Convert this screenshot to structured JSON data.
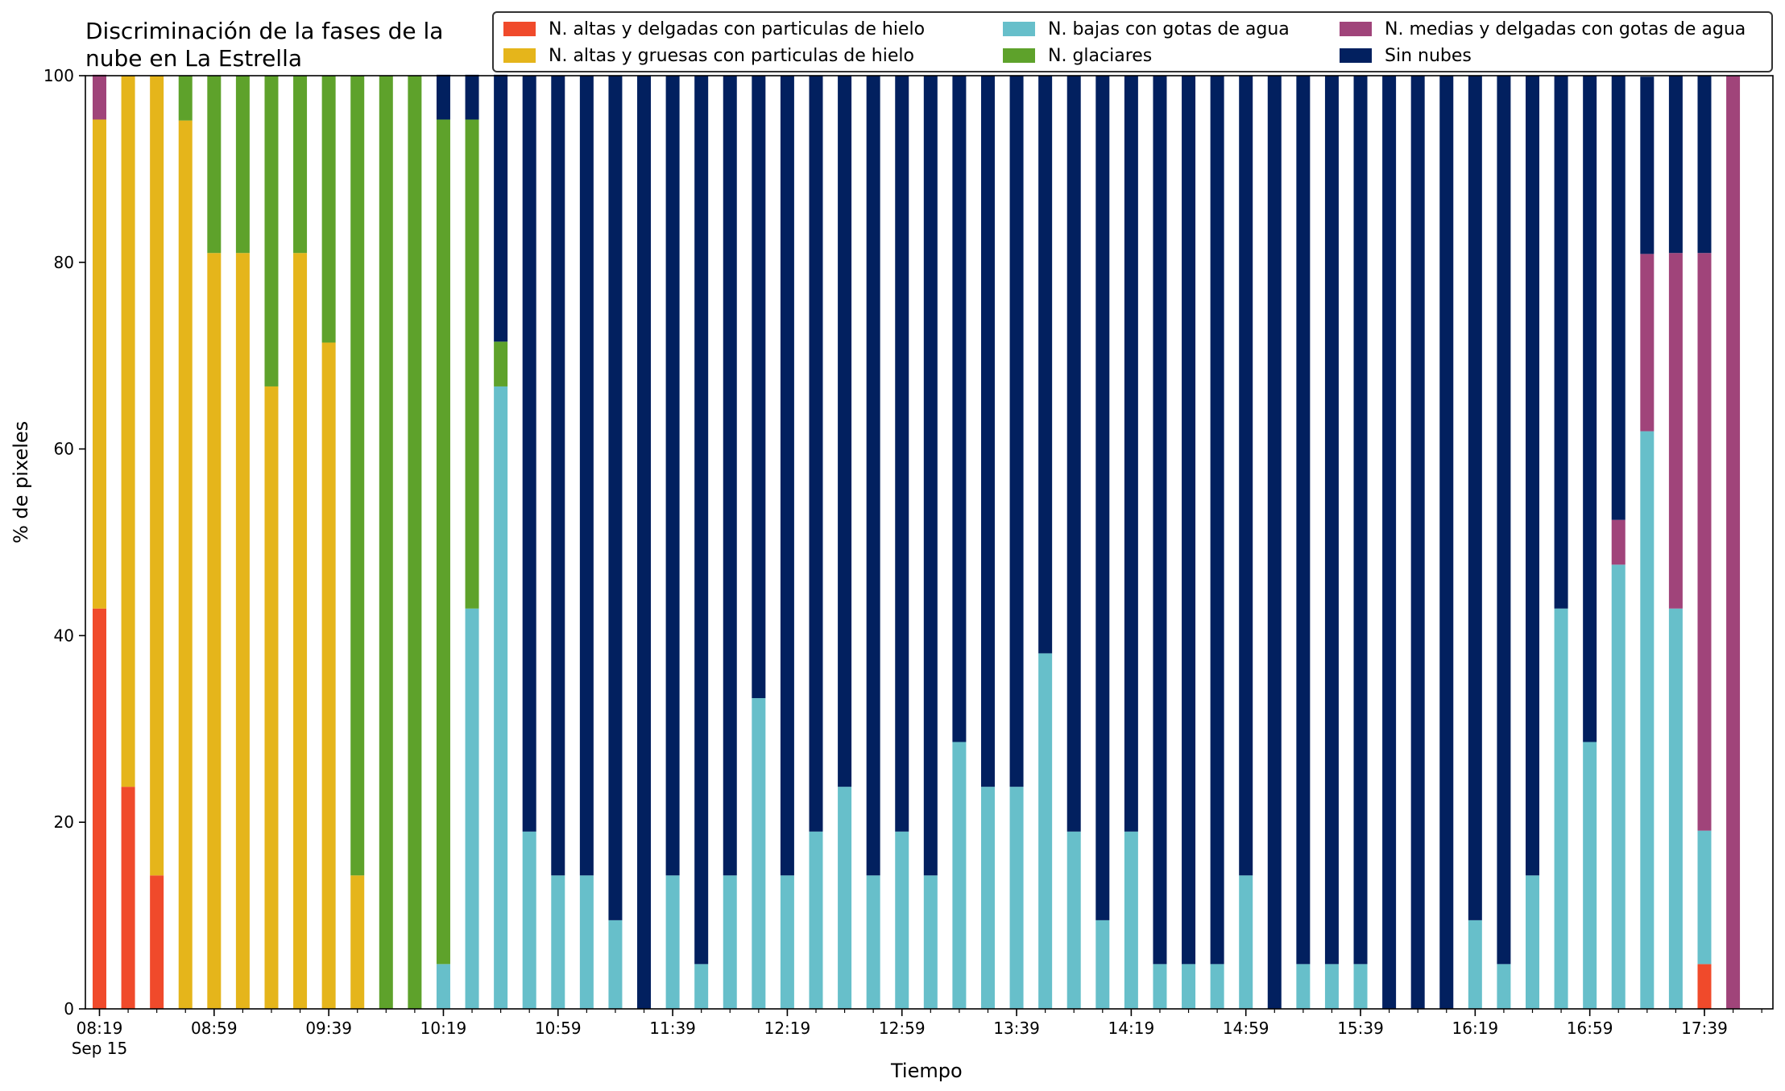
{
  "chart_data": {
    "type": "bar",
    "stacked": true,
    "title": "Discriminación de la fases de la\nnube en La Estrella",
    "title_lines": [
      "Discriminación de la fases de la",
      "nube en La Estrella"
    ],
    "xlabel": "Tiempo",
    "ylabel": "% de pixeles",
    "ylim": [
      0,
      100
    ],
    "y_ticks": [
      0,
      20,
      40,
      60,
      80,
      100
    ],
    "x_tick_labels": [
      "08:19",
      "08:59",
      "09:39",
      "10:19",
      "10:59",
      "11:39",
      "12:19",
      "12:59",
      "13:39",
      "14:19",
      "14:59",
      "15:39",
      "16:19",
      "16:59",
      "17:39"
    ],
    "x_date_label": "Sep 15",
    "interval_minutes": 10,
    "legend_position": "top",
    "categories": [
      "08:19",
      "08:29",
      "08:39",
      "08:49",
      "08:59",
      "09:09",
      "09:19",
      "09:29",
      "09:39",
      "09:49",
      "09:59",
      "10:09",
      "10:19",
      "10:29",
      "10:39",
      "10:49",
      "10:59",
      "11:09",
      "11:19",
      "11:29",
      "11:39",
      "11:49",
      "11:59",
      "12:09",
      "12:19",
      "12:29",
      "12:39",
      "12:49",
      "12:59",
      "13:09",
      "13:19",
      "13:29",
      "13:39",
      "13:49",
      "13:59",
      "14:09",
      "14:19",
      "14:29",
      "14:39",
      "14:49",
      "14:59",
      "15:09",
      "15:19",
      "15:29",
      "15:39",
      "15:49",
      "15:59",
      "16:09",
      "16:19",
      "16:29",
      "16:39",
      "16:49",
      "16:59",
      "17:09",
      "17:19",
      "17:29",
      "17:39",
      "17:49"
    ],
    "series": [
      {
        "name": "N. altas y delgadas con particulas de hielo",
        "color": "#f04a2b",
        "values": [
          42.9,
          23.8,
          14.3,
          0,
          0,
          0,
          0,
          0,
          0,
          0,
          0,
          0,
          0,
          0,
          0,
          0,
          0,
          0,
          0,
          0,
          0,
          0,
          0,
          0,
          0,
          0,
          0,
          0,
          0,
          0,
          0,
          0,
          0,
          0,
          0,
          0,
          0,
          0,
          0,
          0,
          0,
          0,
          0,
          0,
          0,
          0,
          0,
          0,
          0,
          0,
          0,
          0,
          0,
          0,
          0,
          0,
          4.8,
          0
        ]
      },
      {
        "name": "N. altas y gruesas con particulas de hielo",
        "color": "#e5b51b",
        "values": [
          52.4,
          76.2,
          85.7,
          95.2,
          81.0,
          81.0,
          66.7,
          81.0,
          71.4,
          14.3,
          0,
          0,
          0,
          0,
          0,
          0,
          0,
          0,
          0,
          0,
          0,
          0,
          0,
          0,
          0,
          0,
          0,
          0,
          0,
          0,
          0,
          0,
          0,
          0,
          0,
          0,
          0,
          0,
          0,
          0,
          0,
          0,
          0,
          0,
          0,
          0,
          0,
          0,
          0,
          0,
          0,
          0,
          0,
          0,
          0,
          0,
          0,
          0
        ]
      },
      {
        "name": "N. bajas con gotas de agua",
        "color": "#67bfca",
        "values": [
          0,
          0,
          0,
          0,
          0,
          0,
          0,
          0,
          0,
          0,
          0,
          0,
          4.8,
          42.9,
          66.7,
          19.0,
          14.3,
          14.3,
          9.5,
          0,
          14.3,
          4.8,
          14.3,
          33.3,
          14.3,
          19.0,
          23.8,
          14.3,
          19.0,
          14.3,
          28.6,
          23.8,
          23.8,
          38.1,
          19.0,
          9.5,
          19.0,
          4.8,
          4.8,
          4.8,
          14.3,
          0,
          4.8,
          4.8,
          4.8,
          0,
          0,
          0,
          9.5,
          4.8,
          14.3,
          42.9,
          28.6,
          47.6,
          61.9,
          42.9,
          14.3,
          0
        ]
      },
      {
        "name": "N. glaciares",
        "color": "#5ea22b",
        "values": [
          0,
          0,
          0,
          4.8,
          19.0,
          19.0,
          33.3,
          19.0,
          28.6,
          85.7,
          100,
          100,
          90.5,
          52.4,
          4.8,
          0,
          0,
          0,
          0,
          0,
          0,
          0,
          0,
          0,
          0,
          0,
          0,
          0,
          0,
          0,
          0,
          0,
          0,
          0,
          0,
          0,
          0,
          0,
          0,
          0,
          0,
          0,
          0,
          0,
          0,
          0,
          0,
          0,
          0,
          0,
          0,
          0,
          0,
          0,
          0,
          0,
          0,
          0
        ]
      },
      {
        "name": "N. medias y delgadas con gotas de agua",
        "color": "#a0447a",
        "values": [
          4.8,
          0,
          0,
          0,
          0,
          0,
          0,
          0,
          0,
          0,
          0,
          0,
          0,
          0,
          0,
          0,
          0,
          0,
          0,
          0,
          0,
          0,
          0,
          0,
          0,
          0,
          0,
          0,
          0,
          0,
          0,
          0,
          0,
          0,
          0,
          0,
          0,
          0,
          0,
          0,
          0,
          0,
          0,
          0,
          0,
          0,
          0,
          0,
          0,
          0,
          0,
          0,
          0,
          4.8,
          19.0,
          38.1,
          61.9,
          100
        ]
      },
      {
        "name": "Sin nubes",
        "color": "#02205f",
        "values": [
          0,
          0,
          0,
          0,
          0,
          0,
          0,
          0,
          0,
          0,
          0,
          0,
          4.8,
          4.8,
          28.6,
          81.0,
          85.7,
          85.7,
          90.5,
          100,
          85.7,
          95.2,
          85.7,
          66.7,
          85.7,
          81.0,
          76.2,
          85.7,
          81.0,
          85.7,
          71.4,
          76.2,
          76.2,
          61.9,
          81.0,
          90.5,
          81.0,
          95.2,
          95.2,
          95.2,
          85.7,
          100,
          95.2,
          95.2,
          95.2,
          100,
          100,
          100,
          90.5,
          95.2,
          85.7,
          57.1,
          71.4,
          47.6,
          19.0,
          19.0,
          19.0,
          0
        ]
      }
    ],
    "stack_order": [
      0,
      1,
      2,
      3,
      4,
      5
    ]
  }
}
